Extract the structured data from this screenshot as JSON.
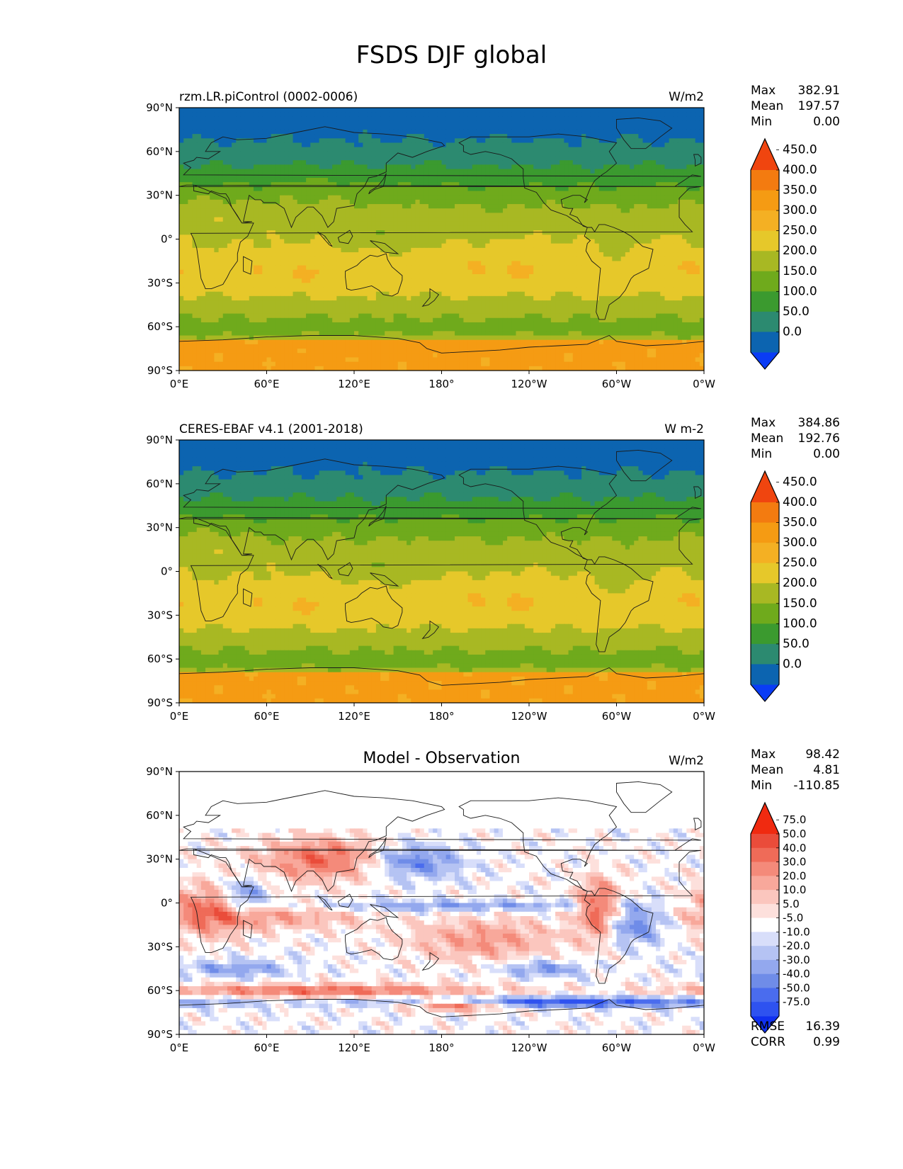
{
  "figure_title": "FSDS DJF global",
  "chart_data": [
    {
      "type": "heatmap",
      "kind": "test",
      "title_left": "rzm.LR.piControl (0002-0006)",
      "title_center": "",
      "units": "W/m2",
      "stats": [
        {
          "label": "Max",
          "value": "382.91"
        },
        {
          "label": "Mean",
          "value": "197.57"
        },
        {
          "label": "Min",
          "value": "0.00"
        }
      ],
      "colorbar": {
        "levels": [
          "0.0",
          "50.0",
          "100.0",
          "150.0",
          "200.0",
          "250.0",
          "300.0",
          "350.0",
          "400.0",
          "450.0"
        ],
        "colors": [
          "#0a3cf5",
          "#0c64b0",
          "#2c8a70",
          "#3b9a2f",
          "#6faa1c",
          "#a8b823",
          "#e6c82a",
          "#f4b023",
          "#f59b13",
          "#f37b10",
          "#f0450f"
        ]
      },
      "footer": []
    },
    {
      "type": "heatmap",
      "kind": "ref",
      "title_left": "CERES-EBAF v4.1 (2001-2018)",
      "title_center": "",
      "units": "W m-2",
      "stats": [
        {
          "label": "Max",
          "value": "384.86"
        },
        {
          "label": "Mean",
          "value": "192.76"
        },
        {
          "label": "Min",
          "value": "0.00"
        }
      ],
      "colorbar": {
        "levels": [
          "0.0",
          "50.0",
          "100.0",
          "150.0",
          "200.0",
          "250.0",
          "300.0",
          "350.0",
          "400.0",
          "450.0"
        ],
        "colors": [
          "#0a3cf5",
          "#0c64b0",
          "#2c8a70",
          "#3b9a2f",
          "#6faa1c",
          "#a8b823",
          "#e6c82a",
          "#f4b023",
          "#f59b13",
          "#f37b10",
          "#f0450f"
        ]
      },
      "footer": []
    },
    {
      "type": "heatmap",
      "kind": "diff",
      "title_left": "",
      "title_center": "Model - Observation",
      "units": "W/m2",
      "stats": [
        {
          "label": "Max",
          "value": "98.42"
        },
        {
          "label": "Mean",
          "value": "4.81"
        },
        {
          "label": "Min",
          "value": "-110.85"
        }
      ],
      "colorbar": {
        "levels": [
          "-75.0",
          "-50.0",
          "-40.0",
          "-30.0",
          "-20.0",
          "-10.0",
          "-5.0",
          "5.0",
          "10.0",
          "20.0",
          "30.0",
          "40.0",
          "50.0",
          "75.0"
        ],
        "colors": [
          "#1030f0",
          "#2e52f0",
          "#4a6cee",
          "#6f8ce8",
          "#93a8ee",
          "#b5c3f3",
          "#d8defa",
          "#ffffff",
          "#fde0dc",
          "#fbc6be",
          "#f8a89b",
          "#f48a7a",
          "#ef6b58",
          "#ea4c3a",
          "#f02a10"
        ]
      },
      "footer": [
        {
          "label": "RMSE",
          "value": "16.39"
        },
        {
          "label": "CORR",
          "value": "0.99"
        }
      ]
    }
  ],
  "axes": {
    "x_ticks": [
      "0°E",
      "60°E",
      "120°E",
      "180°",
      "120°W",
      "60°W",
      "0°W"
    ],
    "y_ticks": [
      "90°N",
      "60°N",
      "30°N",
      "0°",
      "30°S",
      "60°S",
      "90°S"
    ],
    "lon_range": [
      0,
      360
    ],
    "lat_range": [
      -90,
      90
    ]
  }
}
